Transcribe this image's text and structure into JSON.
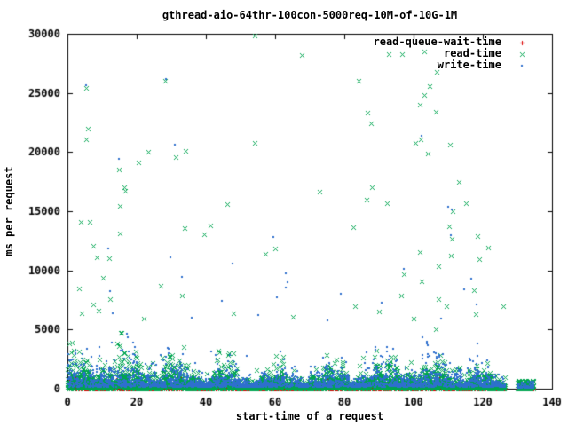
{
  "window": {
    "background_color": "#ffffff",
    "text_color": "#000000",
    "border_color": "#000000"
  },
  "chart_data": {
    "type": "scatter",
    "title": "gthread-aio-64thr-100con-5000req-10M-of-10G-1M",
    "xlabel": "start-time of a request",
    "ylabel": "ms per request",
    "xlim": [
      0,
      140
    ],
    "ylim": [
      0,
      30000
    ],
    "xticks": [
      0,
      20,
      40,
      60,
      80,
      100,
      120,
      140
    ],
    "yticks": [
      0,
      5000,
      10000,
      15000,
      20000,
      25000,
      30000
    ],
    "grid": false,
    "tick_style": "inward-mirrored",
    "legend_position": "top-right-inside",
    "band_envelope": {
      "base": 0.78,
      "terms": [
        [
          0.4,
          0.42,
          1.15
        ],
        [
          0.28,
          1.35,
          0.5
        ],
        [
          0.22,
          0.075,
          0.2
        ]
      ],
      "left_boost": [
        0.5,
        16
      ],
      "right_taper": [
        119,
        0.6
      ]
    },
    "series": [
      {
        "name": "read-queue-wait-time",
        "marker": "plus",
        "color": "#dd0000",
        "band": {
          "count": 2200,
          "x_max": 126.5,
          "y_min": 3,
          "y_mean": 110,
          "y_cap": 1300,
          "seed": 101
        },
        "tail_cluster": {
          "count": 60,
          "x_range": [
            130,
            134.7
          ],
          "y_range": [
            3,
            300
          ]
        },
        "outliers": []
      },
      {
        "name": "read-time",
        "marker": "cross",
        "color": "#00a550",
        "band": {
          "count": 3800,
          "x_max": 126.5,
          "y_min": 15,
          "y_mean": 520,
          "y_cap": 5700,
          "seed": 202
        },
        "tail_cluster": {
          "count": 140,
          "x_range": [
            130,
            134.7
          ],
          "y_range": [
            10,
            700
          ]
        },
        "outliers": [
          [
            54,
            29850
          ],
          [
            103.2,
            28500
          ],
          [
            92.7,
            28300
          ],
          [
            96.6,
            28300
          ],
          [
            67.8,
            28200
          ],
          [
            106.7,
            26800
          ],
          [
            28.3,
            26050
          ],
          [
            84.1,
            26000
          ],
          [
            104.5,
            25600
          ],
          [
            5.4,
            25450
          ],
          [
            103.2,
            24850
          ],
          [
            101.7,
            24000
          ],
          [
            106.5,
            23400
          ],
          [
            86.6,
            23350
          ],
          [
            87.6,
            22450
          ],
          [
            5.9,
            22000
          ],
          [
            102,
            21100
          ],
          [
            5.3,
            21050
          ],
          [
            54,
            20750
          ],
          [
            100.6,
            20750
          ],
          [
            110.6,
            20650
          ],
          [
            34.2,
            20100
          ],
          [
            23.4,
            20000
          ],
          [
            104,
            19900
          ],
          [
            31.2,
            19550
          ],
          [
            20.4,
            19100
          ],
          [
            14.8,
            18500
          ],
          [
            113.1,
            17500
          ],
          [
            16.3,
            17000
          ],
          [
            87.9,
            17000
          ],
          [
            16.6,
            16700
          ],
          [
            72.9,
            16650
          ],
          [
            86.4,
            16000
          ],
          [
            92.2,
            15700
          ],
          [
            115.2,
            15700
          ],
          [
            46.1,
            15600
          ],
          [
            15,
            15450
          ],
          [
            111.3,
            15000
          ],
          [
            3.8,
            14100
          ],
          [
            6.4,
            14100
          ],
          [
            41.3,
            13800
          ],
          [
            110.3,
            13730
          ],
          [
            82.5,
            13650
          ],
          [
            33.9,
            13600
          ],
          [
            15,
            13150
          ],
          [
            39.5,
            13050
          ],
          [
            118.5,
            12900
          ],
          [
            111,
            12690
          ],
          [
            7.4,
            12100
          ],
          [
            121.5,
            11940
          ],
          [
            59.9,
            11870
          ],
          [
            101.7,
            11570
          ],
          [
            57.3,
            11400
          ],
          [
            110.8,
            11270
          ],
          [
            8.4,
            11100
          ],
          [
            12,
            11050
          ],
          [
            119,
            10970
          ],
          [
            107.3,
            10370
          ],
          [
            97.3,
            9700
          ],
          [
            10.2,
            9400
          ],
          [
            102.2,
            9100
          ],
          [
            27,
            8730
          ],
          [
            3.3,
            8500
          ],
          [
            117.5,
            8360
          ],
          [
            96.3,
            7840
          ],
          [
            33.1,
            7840
          ],
          [
            12.2,
            7550
          ],
          [
            107.3,
            7540
          ],
          [
            7.4,
            7100
          ],
          [
            83,
            7010
          ],
          [
            109.5,
            7010
          ],
          [
            125.8,
            6940
          ],
          [
            9,
            6600
          ],
          [
            90,
            6500
          ],
          [
            48,
            6400
          ],
          [
            4,
            6350
          ],
          [
            118,
            6300
          ],
          [
            65,
            6100
          ],
          [
            100,
            5950
          ],
          [
            22,
            5900
          ]
        ]
      },
      {
        "name": "write-time",
        "marker": "dot",
        "color": "#2e6fce",
        "band": {
          "count": 2600,
          "x_max": 126.5,
          "y_min": 140,
          "y_mean": 620,
          "y_cap": 5500,
          "seed": 303
        },
        "tail_cluster": {
          "count": 70,
          "x_range": [
            130,
            134.7
          ],
          "y_range": [
            60,
            600
          ]
        },
        "outliers": [
          [
            28.4,
            26200
          ],
          [
            5.5,
            25650
          ],
          [
            102.2,
            21400
          ],
          [
            31,
            20600
          ],
          [
            14.8,
            19400
          ],
          [
            110,
            15350
          ],
          [
            111,
            15150
          ],
          [
            110.8,
            12990
          ],
          [
            59.6,
            12800
          ],
          [
            11.7,
            11870
          ],
          [
            29.8,
            11100
          ],
          [
            47.6,
            10600
          ],
          [
            97.3,
            10150
          ],
          [
            63,
            9780
          ],
          [
            33.1,
            9480
          ],
          [
            116.6,
            9330
          ],
          [
            63.7,
            9030
          ],
          [
            63,
            8580
          ],
          [
            114.6,
            8430
          ],
          [
            12.2,
            8280
          ],
          [
            79,
            8060
          ],
          [
            60.6,
            7690
          ],
          [
            44.6,
            7390
          ],
          [
            90.7,
            7310
          ],
          [
            118.2,
            7160
          ],
          [
            13,
            6400
          ],
          [
            55,
            6200
          ],
          [
            36,
            6000
          ],
          [
            108,
            5900
          ],
          [
            75,
            5800
          ]
        ]
      }
    ]
  }
}
